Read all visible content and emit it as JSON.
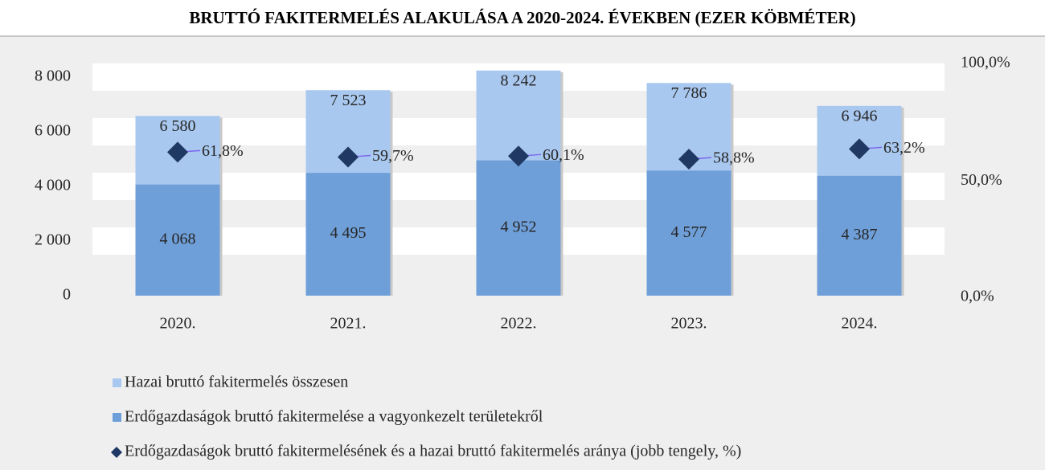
{
  "chart_data": {
    "type": "bar",
    "title": "BRUTTÓ FAKITERMELÉS ALAKULÁSA A 2020-2024. ÉVEKBEN (EZER KÖBMÉTER)",
    "categories": [
      "2020.",
      "2021.",
      "2022.",
      "2023.",
      "2024."
    ],
    "series": [
      {
        "name": "Hazai bruttó fakitermelés összesen",
        "color": "#a9c8ef",
        "values": [
          6580,
          7523,
          8242,
          7786,
          6946
        ],
        "value_labels": [
          "6 580",
          "7 523",
          "8 242",
          "7 786",
          "6 946"
        ]
      },
      {
        "name": "Erdőgazdaságok bruttó fakitermelése a vagyonkezelt területekről",
        "color": "#6f9fd8",
        "values": [
          4068,
          4495,
          4952,
          4577,
          4387
        ],
        "value_labels": [
          "4 068",
          "4 495",
          "4 952",
          "4 577",
          "4 387"
        ]
      },
      {
        "name": "Erdőgazdaságok bruttó fakitermelésének és a hazai bruttó fakitermelés aránya (jobb tengely, %)",
        "color": "#1f3864",
        "type": "scatter",
        "axis": "y2",
        "values": [
          61.8,
          59.7,
          60.1,
          58.8,
          63.2
        ],
        "value_labels": [
          "61,8%",
          "59,7%",
          "60,1%",
          "58,8%",
          "63,2%"
        ]
      }
    ],
    "ylim": [
      0,
      8500
    ],
    "yticks": [
      0,
      {
        "value": 2000,
        "label": "2 000"
      },
      {
        "value": 4000,
        "label": "4 000"
      },
      {
        "value": 6000,
        "label": "6 000"
      },
      {
        "value": 8000,
        "label": "8 000"
      }
    ],
    "y2lim": [
      0,
      100
    ],
    "y2ticks": [
      {
        "value": 0,
        "label": "0,0%"
      },
      {
        "value": 50,
        "label": "50,0%"
      },
      {
        "value": 100,
        "label": "100,0%"
      }
    ],
    "grid": "bands",
    "legend": "bottom"
  }
}
